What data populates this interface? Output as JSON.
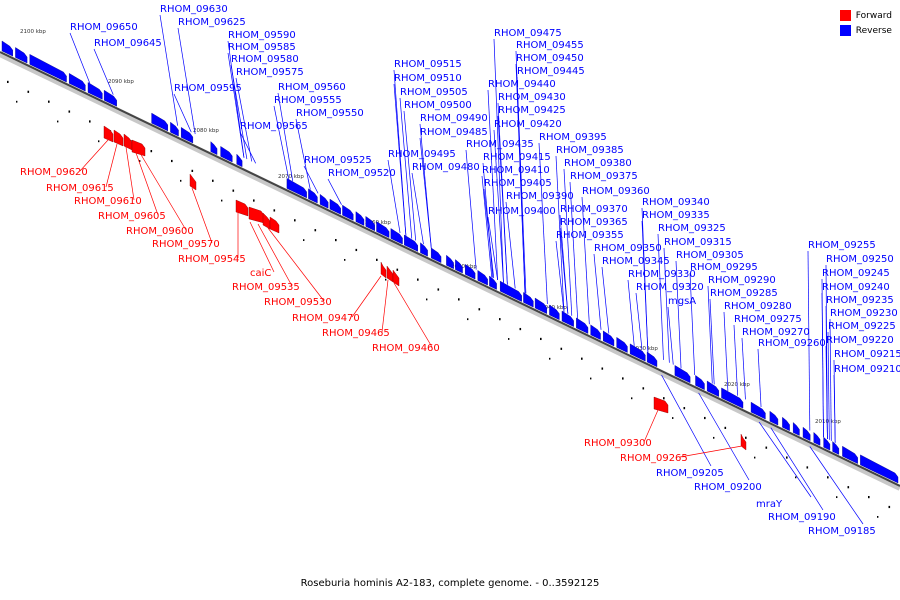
{
  "caption": "Roseburia hominis A2-183, complete genome. - 0..3592125",
  "legend": [
    {
      "label": "Forward",
      "color": "#ff0000"
    },
    {
      "label": "Reverse",
      "color": "#0000ff"
    }
  ],
  "scale_ticks": [
    "2100 kbp",
    "2090 kbp",
    "2080 kbp",
    "2070 kbp",
    "2060 kbp",
    "2050 kbp",
    "2040 kbp",
    "2030 kbp",
    "2020 kbp",
    "2010 kbp"
  ],
  "reverse_genes": [
    "RHOM_09630",
    "RHOM_09650",
    "RHOM_09625",
    "RHOM_09645",
    "RHOM_09590",
    "RHOM_09585",
    "RHOM_09580",
    "RHOM_09575",
    "RHOM_09595",
    "RHOM_09560",
    "RHOM_09555",
    "RHOM_09550",
    "RHOM_09565",
    "RHOM_09525",
    "RHOM_09520",
    "RHOM_09515",
    "RHOM_09510",
    "RHOM_09505",
    "RHOM_09500",
    "RHOM_09490",
    "RHOM_09485",
    "RHOM_09495",
    "RHOM_09480",
    "RHOM_09475",
    "RHOM_09455",
    "RHOM_09450",
    "RHOM_09445",
    "RHOM_09440",
    "RHOM_09430",
    "RHOM_09425",
    "RHOM_09420",
    "RHOM_09435",
    "RHOM_09415",
    "RHOM_09410",
    "RHOM_09405",
    "RHOM_09390",
    "RHOM_09400",
    "RHOM_09395",
    "RHOM_09385",
    "RHOM_09380",
    "RHOM_09375",
    "RHOM_09360",
    "RHOM_09370",
    "RHOM_09365",
    "RHOM_09355",
    "RHOM_09350",
    "RHOM_09345",
    "RHOM_09340",
    "RHOM_09335",
    "RHOM_09325",
    "RHOM_09315",
    "RHOM_09330",
    "RHOM_09320",
    "RHOM_09305",
    "RHOM_09295",
    "RHOM_09290",
    "mgsA",
    "RHOM_09285",
    "RHOM_09280",
    "RHOM_09275",
    "RHOM_09270",
    "RHOM_09260",
    "RHOM_09255",
    "RHOM_09250",
    "RHOM_09245",
    "RHOM_09240",
    "RHOM_09235",
    "RHOM_09230",
    "RHOM_09225",
    "RHOM_09220",
    "RHOM_09215",
    "RHOM_09210",
    "RHOM_09205",
    "RHOM_09200",
    "mraY",
    "RHOM_09190",
    "RHOM_09185"
  ],
  "forward_genes": [
    "RHOM_09620",
    "RHOM_09615",
    "RHOM_09610",
    "RHOM_09605",
    "RHOM_09600",
    "RHOM_09570",
    "RHOM_09545",
    "caiC",
    "RHOM_09535",
    "RHOM_09530",
    "RHOM_09470",
    "RHOM_09465",
    "RHOM_09460",
    "RHOM_09300",
    "RHOM_09265"
  ]
}
